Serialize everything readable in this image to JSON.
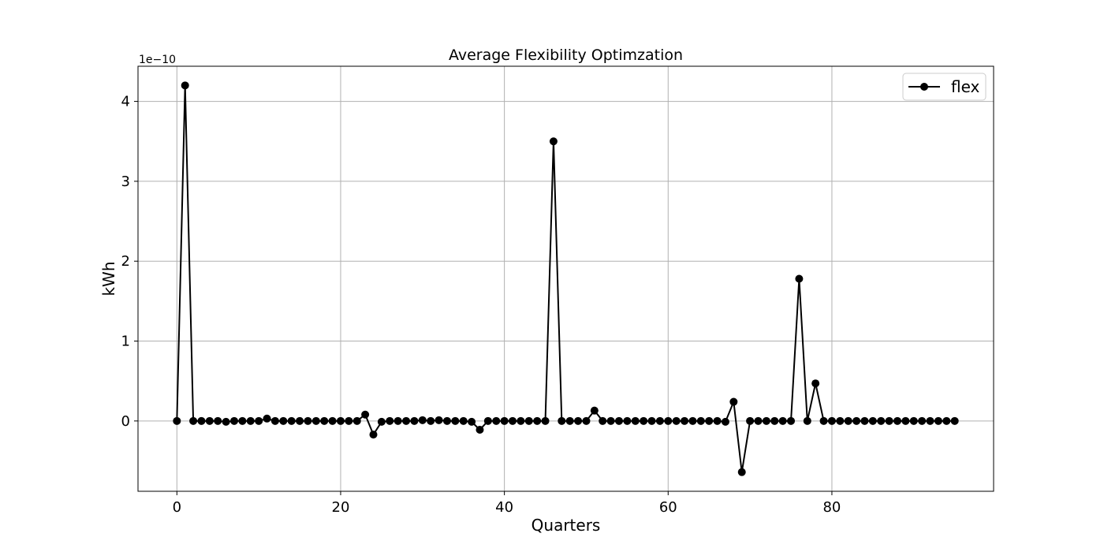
{
  "chart_data": {
    "type": "line",
    "title": "Average Flexibility Optimzation",
    "xlabel": "Quarters",
    "ylabel": "kWh",
    "y_offset_label": "1e−10",
    "y_unit_scale": 1e-10,
    "xlim": [
      -4.75,
      99.75
    ],
    "ylim": [
      -0.88,
      4.44
    ],
    "xticks": [
      0,
      20,
      40,
      60,
      80
    ],
    "yticks": [
      0,
      1,
      2,
      3,
      4
    ],
    "grid": true,
    "legend_position": "top-right",
    "marker": "circle",
    "color": "#000000",
    "series": [
      {
        "name": "flex",
        "x": [
          0,
          1,
          2,
          3,
          4,
          5,
          6,
          7,
          8,
          9,
          10,
          11,
          12,
          13,
          14,
          15,
          16,
          17,
          18,
          19,
          20,
          21,
          22,
          23,
          24,
          25,
          26,
          27,
          28,
          29,
          30,
          31,
          32,
          33,
          34,
          35,
          36,
          37,
          38,
          39,
          40,
          41,
          42,
          43,
          44,
          45,
          46,
          47,
          48,
          49,
          50,
          51,
          52,
          53,
          54,
          55,
          56,
          57,
          58,
          59,
          60,
          61,
          62,
          63,
          64,
          65,
          66,
          67,
          68,
          69,
          70,
          71,
          72,
          73,
          74,
          75,
          76,
          77,
          78,
          79,
          80,
          81,
          82,
          83,
          84,
          85,
          86,
          87,
          88,
          89,
          90,
          91,
          92,
          93,
          94,
          95
        ],
        "values": [
          0,
          4.2,
          0,
          0,
          0,
          0,
          -0.01,
          0,
          0,
          0,
          0,
          0.03,
          0,
          0,
          0,
          0,
          0,
          0,
          0,
          0,
          0,
          0,
          0,
          0.08,
          -0.17,
          -0.01,
          0,
          0,
          0,
          0,
          0.01,
          0,
          0.01,
          0,
          0,
          0,
          -0.01,
          -0.11,
          0,
          0,
          0,
          0,
          0,
          0,
          0,
          0,
          3.5,
          0,
          0,
          0,
          0,
          0.13,
          0,
          0,
          0,
          0,
          0,
          0,
          0,
          0,
          0,
          0,
          0,
          0,
          0,
          0,
          0,
          -0.01,
          0.24,
          -0.64,
          0,
          0,
          0,
          0,
          0,
          0,
          1.78,
          0,
          0.47,
          0,
          0,
          0,
          0,
          0,
          0,
          0,
          0,
          0,
          0,
          0,
          0,
          0,
          0,
          0,
          0,
          0
        ]
      }
    ]
  }
}
